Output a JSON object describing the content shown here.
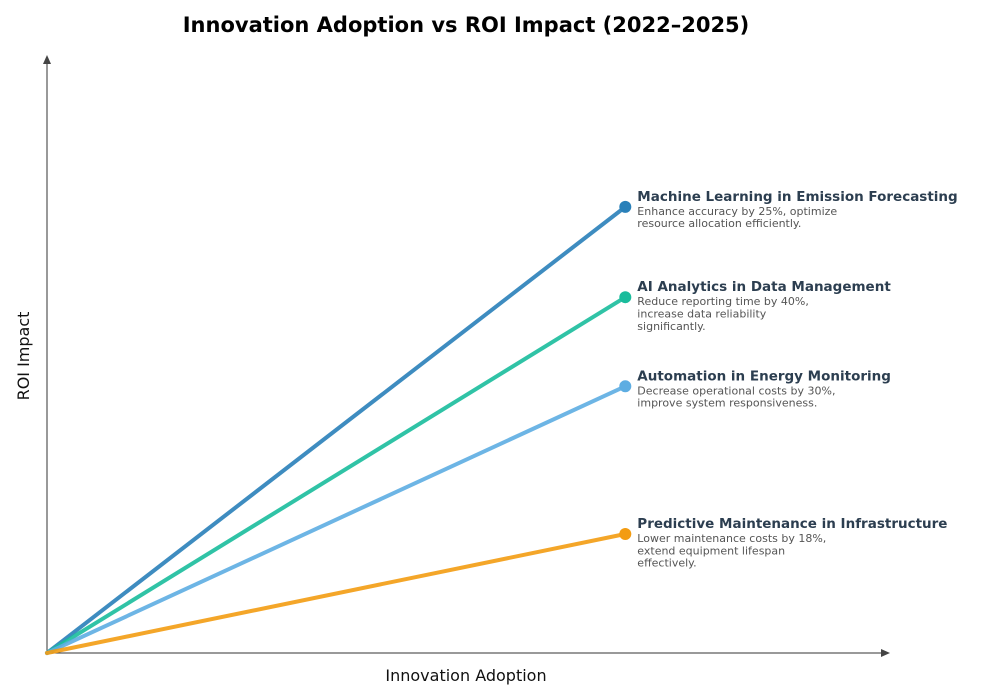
{
  "chart_data": {
    "type": "line",
    "title": "Innovation Adoption vs ROI Impact (2022–2025)",
    "xlabel": "Innovation Adoption",
    "ylabel": "ROI Impact",
    "xlim": [
      0,
      1
    ],
    "ylim": [
      0,
      1
    ],
    "grid": false,
    "ticks": false,
    "series": [
      {
        "name": "Machine Learning in Emission Forecasting",
        "x": [
          0,
          0.686
        ],
        "y": [
          0,
          0.746
        ],
        "color": "#2980b9",
        "description": [
          "Enhance accuracy by 25%, optimize",
          "resource allocation efficiently."
        ]
      },
      {
        "name": "AI Analytics in Data Management",
        "x": [
          0,
          0.686
        ],
        "y": [
          0,
          0.595
        ],
        "color": "#1abc9c",
        "description": [
          "Reduce reporting time by 40%,",
          "increase data reliability",
          "significantly."
        ]
      },
      {
        "name": "Automation in Energy Monitoring",
        "x": [
          0,
          0.686
        ],
        "y": [
          0,
          0.446
        ],
        "color": "#5dade2",
        "description": [
          "Decrease operational costs by 30%,",
          "improve system responsiveness."
        ]
      },
      {
        "name": "Predictive Maintenance in Infrastructure",
        "x": [
          0,
          0.686
        ],
        "y": [
          0,
          0.199
        ],
        "color": "#f39c12",
        "description": [
          "Lower maintenance costs by 18%,",
          "extend equipment lifespan",
          "effectively."
        ]
      }
    ]
  }
}
